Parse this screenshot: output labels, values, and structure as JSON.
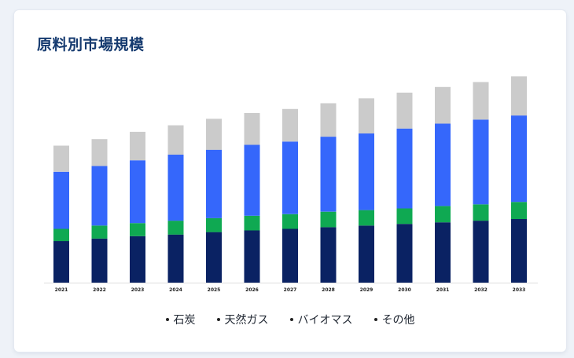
{
  "title": "原料別市場規模",
  "chart_data": {
    "type": "bar",
    "stacked": true,
    "categories": [
      "2021",
      "2022",
      "2023",
      "2024",
      "2025",
      "2026",
      "2027",
      "2028",
      "2029",
      "2030",
      "2031",
      "2032",
      "2033"
    ],
    "series": [
      {
        "name": "石炭",
        "color": "#0a2263",
        "values": [
          51,
          54,
          57,
          59,
          62,
          64,
          66,
          68,
          70,
          72,
          74,
          76,
          78
        ]
      },
      {
        "name": "天然ガス",
        "color": "#0fa952",
        "values": [
          15,
          16,
          16,
          17,
          17,
          18,
          18,
          19,
          19,
          19,
          20,
          20,
          21
        ]
      },
      {
        "name": "バイオマス",
        "color": "#3567fb",
        "values": [
          70,
          73,
          77,
          81,
          84,
          87,
          89,
          92,
          94,
          98,
          101,
          104,
          106
        ]
      },
      {
        "name": "その他",
        "color": "#cbcbcb",
        "values": [
          32,
          33,
          35,
          36,
          38,
          39,
          40,
          41,
          43,
          44,
          45,
          46,
          48
        ]
      }
    ],
    "ylim": [
      0,
      260
    ],
    "grid": false,
    "legend": "bottom"
  }
}
